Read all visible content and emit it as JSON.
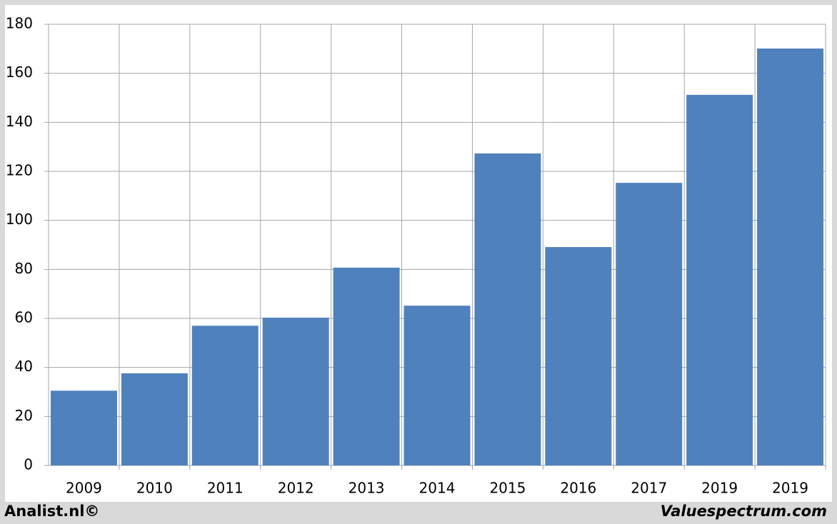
{
  "chart_data": {
    "type": "bar",
    "categories": [
      "2009",
      "2010",
      "2011",
      "2012",
      "2013",
      "2014",
      "2015",
      "2016",
      "2017",
      "2019",
      "2019"
    ],
    "values": [
      30.5,
      37.6,
      57,
      60.3,
      80.7,
      65.2,
      127.3,
      89.1,
      115.3,
      151.2,
      170.1
    ],
    "color": "#4f81bd",
    "ylim": [
      0,
      180
    ],
    "yticks": [
      0,
      20,
      40,
      60,
      80,
      100,
      120,
      140,
      160,
      180
    ],
    "grid": true,
    "annotations": [
      "Analist.nl©",
      "Valuespectrum.com"
    ]
  }
}
